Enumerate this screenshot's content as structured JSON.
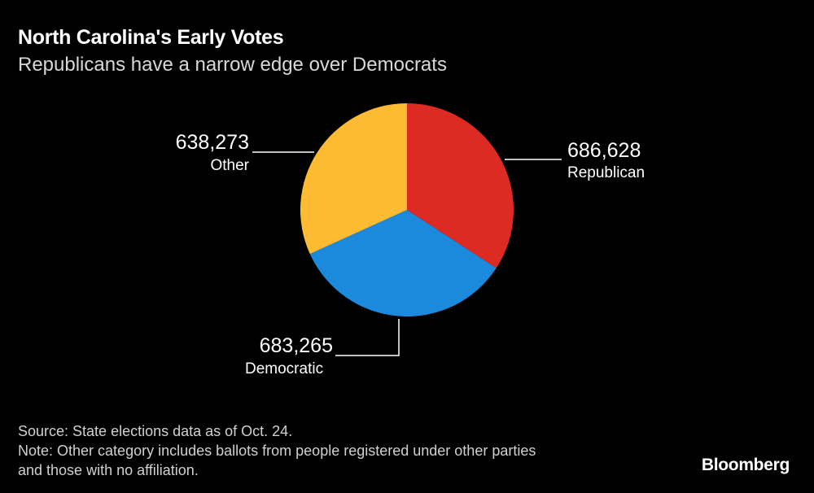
{
  "header": {
    "title": "North Carolina's Early Votes",
    "subtitle": "Republicans have a narrow edge over Democrats"
  },
  "chart_data": {
    "type": "pie",
    "title": "North Carolina's Early Votes",
    "subtitle": "Republicans have a narrow edge over Democrats",
    "slices": [
      {
        "label": "Republican",
        "value": 686628,
        "value_label": "686,628",
        "color": "#dd2a22"
      },
      {
        "label": "Democratic",
        "value": 683265,
        "value_label": "683,265",
        "color": "#1b89dc"
      },
      {
        "label": "Other",
        "value": 638273,
        "value_label": "638,273",
        "color": "#fdbb34"
      }
    ]
  },
  "footer": {
    "source": "Source: State elections data as of Oct. 24.",
    "note_line1": "Note: Other category includes ballots from people registered under other parties",
    "note_line2": "and those with no affiliation."
  },
  "brand": "Bloomberg"
}
